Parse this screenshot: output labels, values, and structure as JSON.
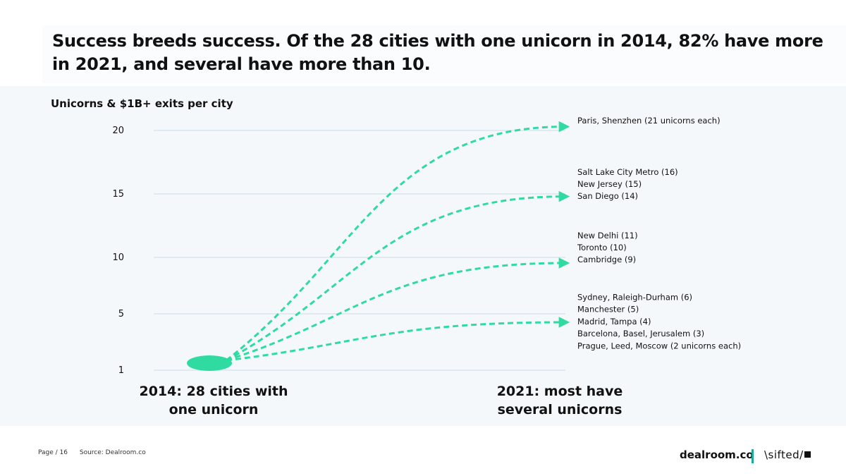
{
  "title": "Success breeds success. Of the 28 cities with one unicorn in 2014, 82% have more in 2021, and several have more than 10.",
  "chart_data": {
    "type": "line",
    "title": "",
    "ylabel": "Unicorns & $1B+ exits per city",
    "xlabel": "",
    "y_ticks": [
      "20",
      "15",
      "10",
      "5",
      "1"
    ],
    "grid": true,
    "accent_color": "#2fdba0",
    "start": {
      "label": "2014: 28 cities with one unicorn",
      "y": 1
    },
    "end_label": "2021: most have several unicorns",
    "arrows": [
      {
        "to_y": 20.3
      },
      {
        "to_y": 14.8
      },
      {
        "to_y": 9.5
      },
      {
        "to_y": 4.4
      }
    ],
    "groups": [
      {
        "anchor_y": 20,
        "lines": [
          "Paris, Shenzhen (21 unicorns each)"
        ]
      },
      {
        "anchor_y": 15,
        "lines": [
          "Salt Lake City Metro (16)",
          "New Jersey (15)",
          "San Diego (14)"
        ]
      },
      {
        "anchor_y": 10,
        "lines": [
          "New Delhi (11)",
          "Toronto (10)",
          "Cambridge (9)"
        ]
      },
      {
        "anchor_y": 5,
        "lines": [
          "Sydney, Raleigh-Durham (6)",
          "Manchester (5)",
          "Madrid, Tampa (4)",
          "Barcelona, Basel, Jerusalem (3)",
          "Prague, Leed, Moscow (2 unicorns each)"
        ]
      }
    ]
  },
  "footer": {
    "page": "Page / 16",
    "source": "Source: Dealroom.co",
    "brand_primary": "dealroom.co",
    "brand_secondary": "\\sifted/"
  }
}
